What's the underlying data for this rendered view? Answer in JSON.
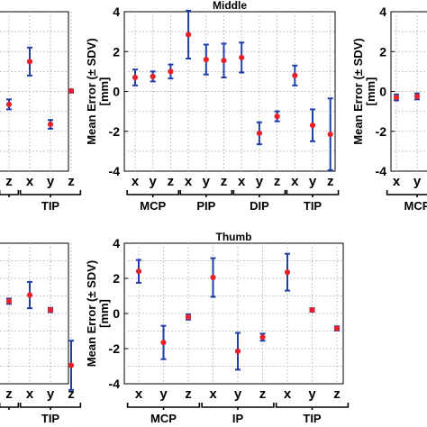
{
  "figure": {
    "ylabel_line1": "Mean Error (± SDV)",
    "ylabel_line2": "[mm]",
    "marker_color": "#e8202a",
    "errorbar_color": "#1f3ea8",
    "grid_color": "#b0b0b0"
  },
  "chart_data": [
    {
      "type": "scatter",
      "title": "",
      "ylim": [
        -4,
        4
      ],
      "yticks": [],
      "grid": true,
      "x_labels": [
        "z",
        "x",
        "y",
        "z"
      ],
      "groups": [
        {
          "label": "",
          "span": [
            0,
            1
          ]
        },
        {
          "label": "TIP",
          "span": [
            1,
            4
          ]
        }
      ],
      "points": [
        {
          "x": 0,
          "mean": -0.65,
          "sd": 0.25
        },
        {
          "x": 1,
          "mean": 1.5,
          "sd": 0.7
        },
        {
          "x": 2,
          "mean": -1.65,
          "sd": 0.22
        },
        {
          "x": 3,
          "mean": 0.02,
          "sd": 0.08
        }
      ]
    },
    {
      "type": "scatter",
      "title": "Middle",
      "ylim": [
        -4,
        4
      ],
      "yticks": [
        "-4",
        "-2",
        "0",
        "2",
        "4"
      ],
      "grid": true,
      "x_labels": [
        "x",
        "y",
        "z",
        "x",
        "y",
        "z",
        "x",
        "y",
        "z",
        "x",
        "y",
        "z"
      ],
      "groups": [
        {
          "label": "MCP",
          "span": [
            0,
            3
          ]
        },
        {
          "label": "PIP",
          "span": [
            3,
            6
          ]
        },
        {
          "label": "DIP",
          "span": [
            6,
            9
          ]
        },
        {
          "label": "TIP",
          "span": [
            9,
            12
          ]
        }
      ],
      "points": [
        {
          "x": 0,
          "mean": 0.7,
          "sd": 0.4
        },
        {
          "x": 1,
          "mean": 0.75,
          "sd": 0.25
        },
        {
          "x": 2,
          "mean": 1.0,
          "sd": 0.35
        },
        {
          "x": 3,
          "mean": 2.85,
          "sd": 1.2
        },
        {
          "x": 4,
          "mean": 1.6,
          "sd": 0.75
        },
        {
          "x": 5,
          "mean": 1.55,
          "sd": 0.85
        },
        {
          "x": 6,
          "mean": 1.7,
          "sd": 0.75
        },
        {
          "x": 7,
          "mean": -2.1,
          "sd": 0.55
        },
        {
          "x": 8,
          "mean": -1.25,
          "sd": 0.25
        },
        {
          "x": 9,
          "mean": 0.8,
          "sd": 0.5
        },
        {
          "x": 10,
          "mean": -1.7,
          "sd": 0.8
        },
        {
          "x": 11,
          "mean": -2.15,
          "sd": 1.8
        }
      ]
    },
    {
      "type": "scatter",
      "title": "",
      "ylim": [
        -4,
        4
      ],
      "yticks": [
        "-4",
        "-2",
        "0",
        "2",
        "4"
      ],
      "grid": true,
      "x_labels": [
        "x",
        "y"
      ],
      "groups": [
        {
          "label": "MCP",
          "span": [
            0,
            3
          ]
        }
      ],
      "points": [
        {
          "x": 0,
          "mean": -0.3,
          "sd": 0.15
        },
        {
          "x": 1,
          "mean": -0.25,
          "sd": 0.15
        }
      ]
    },
    {
      "type": "scatter",
      "title": "",
      "ylim": [
        -4,
        4
      ],
      "yticks": [],
      "grid": true,
      "x_labels": [
        "z",
        "x",
        "y",
        "z"
      ],
      "groups": [
        {
          "label": "",
          "span": [
            0,
            1
          ]
        },
        {
          "label": "TIP",
          "span": [
            1,
            4
          ]
        }
      ],
      "points": [
        {
          "x": 0,
          "mean": 0.7,
          "sd": 0.15
        },
        {
          "x": 1,
          "mean": 1.05,
          "sd": 0.75
        },
        {
          "x": 2,
          "mean": 0.2,
          "sd": 0.12
        },
        {
          "x": 3,
          "mean": -2.95,
          "sd": 1.4
        }
      ]
    },
    {
      "type": "scatter",
      "title": "Thumb",
      "ylim": [
        -4,
        4
      ],
      "yticks": [
        "-4",
        "-2",
        "0",
        "2",
        "4"
      ],
      "grid": true,
      "x_labels": [
        "x",
        "y",
        "z",
        "x",
        "y",
        "z",
        "x",
        "y",
        "z"
      ],
      "groups": [
        {
          "label": "MCP",
          "span": [
            0,
            3
          ]
        },
        {
          "label": "IP",
          "span": [
            3,
            6
          ]
        },
        {
          "label": "TIP",
          "span": [
            6,
            9
          ]
        }
      ],
      "points": [
        {
          "x": 0,
          "mean": 2.4,
          "sd": 0.65
        },
        {
          "x": 1,
          "mean": -1.65,
          "sd": 0.95
        },
        {
          "x": 2,
          "mean": -0.2,
          "sd": 0.15
        },
        {
          "x": 3,
          "mean": 2.05,
          "sd": 1.1
        },
        {
          "x": 4,
          "mean": -2.15,
          "sd": 1.05
        },
        {
          "x": 5,
          "mean": -1.35,
          "sd": 0.2
        },
        {
          "x": 6,
          "mean": 2.35,
          "sd": 1.05
        },
        {
          "x": 7,
          "mean": 0.2,
          "sd": 0.1
        },
        {
          "x": 8,
          "mean": -0.85,
          "sd": 0.12
        }
      ]
    }
  ]
}
